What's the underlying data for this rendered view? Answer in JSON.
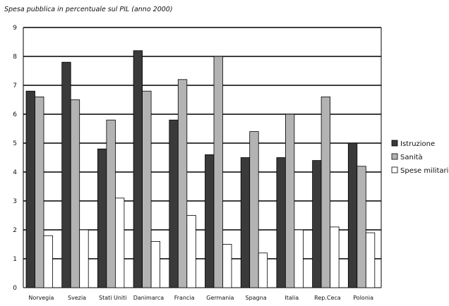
{
  "chart_data": {
    "type": "bar",
    "title": "Spesa pubblica in percentuale sul PIL (anno 2000)",
    "xlabel": "",
    "ylabel": "",
    "categories": [
      "Norvegia",
      "Svezia",
      "Stati Uniti",
      "Danimarca",
      "Francia",
      "Germania",
      "Spagna",
      "Italia",
      "Rep.Ceca",
      "Polonia"
    ],
    "series": [
      {
        "name": "Istruzione",
        "color": "#3a3a3a",
        "values": [
          6.8,
          7.8,
          4.8,
          8.2,
          5.8,
          4.6,
          4.5,
          4.5,
          4.4,
          5.0
        ]
      },
      {
        "name": "Sanità",
        "color": "#b3b3b3",
        "values": [
          6.6,
          6.5,
          5.8,
          6.8,
          7.2,
          8.0,
          5.4,
          6.0,
          6.6,
          4.2
        ]
      },
      {
        "name": "Spese militari",
        "color": "#ffffff",
        "values": [
          1.8,
          2.0,
          3.1,
          1.6,
          2.5,
          1.5,
          1.2,
          2.0,
          2.1,
          1.9
        ]
      }
    ],
    "ylim": [
      0,
      9
    ],
    "yticks": [
      0,
      1,
      2,
      3,
      4,
      5,
      6,
      7,
      8,
      9
    ],
    "grid": true,
    "legend": "right"
  }
}
